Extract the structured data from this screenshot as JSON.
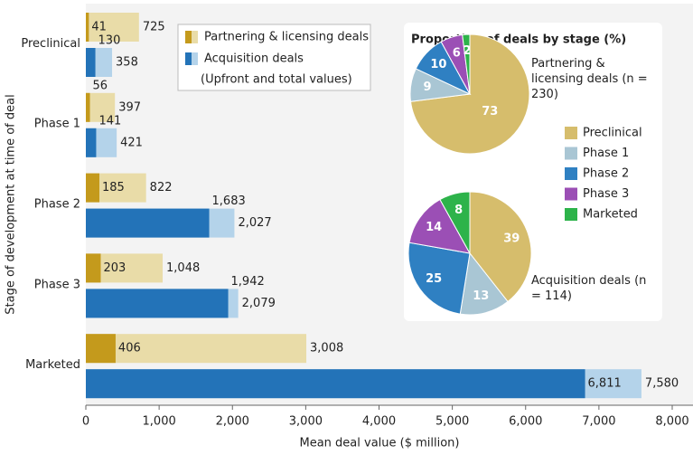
{
  "chart_data": [
    {
      "type": "bar",
      "orientation": "horizontal",
      "xlabel": "Mean deal value ($ million)",
      "ylabel": "Stage of development at time of deal",
      "categories": [
        "Preclinical",
        "Phase 1",
        "Phase 2",
        "Phase 3",
        "Marketed"
      ],
      "series": [
        {
          "name": "Partnering & licensing deals",
          "color": "#c49a1c",
          "total_color": "#e9dca8",
          "values": [
            41,
            56,
            185,
            203,
            406
          ],
          "value_labels": [
            "41",
            "56",
            "185",
            "203",
            "406"
          ],
          "totals": [
            725,
            397,
            822,
            1048,
            3008
          ],
          "total_labels": [
            "725",
            "397",
            "822",
            "1,048",
            "3,008"
          ]
        },
        {
          "name": "Acquisition deals",
          "color": "#2373b8",
          "total_color": "#b4d3ea",
          "values": [
            130,
            141,
            1683,
            1942,
            6811
          ],
          "value_labels": [
            "130",
            "141",
            "1,683",
            "1,942",
            "6,811"
          ],
          "totals": [
            358,
            421,
            2027,
            2079,
            7580
          ],
          "total_labels": [
            "358",
            "421",
            "2,027",
            "2,079",
            "7,580"
          ]
        }
      ],
      "legend_note": "(Upfront and total values)",
      "xlim": [
        0,
        8000
      ],
      "xticks": [
        0,
        {
          "value": 1000,
          "label": "1,000"
        },
        {
          "value": 2000,
          "label": "2,000"
        },
        {
          "value": 3000,
          "label": "3,000"
        },
        {
          "value": 4000,
          "label": "4,000"
        },
        {
          "value": 5000,
          "label": "5,000"
        },
        {
          "value": 6000,
          "label": "6,000"
        },
        {
          "value": 7000,
          "label": "7,000"
        },
        {
          "value": 8000,
          "label": "8,000"
        }
      ]
    },
    {
      "type": "pie",
      "title": "Proportion of deals by stage (%)",
      "categories": [
        "Preclinical",
        "Phase 1",
        "Phase 2",
        "Phase 3",
        "Marketed"
      ],
      "colors": [
        "#d6bd6c",
        "#a9c6d4",
        "#2f80c2",
        "#9b4fb5",
        "#2db34a"
      ],
      "pies": [
        {
          "name": "Partnering & licensing deals (n = 230)",
          "values": [
            73,
            9,
            10,
            6,
            2
          ]
        },
        {
          "name": "Acquisition deals (n = 114)",
          "values": [
            39,
            13,
            25,
            14,
            8
          ]
        }
      ]
    }
  ]
}
